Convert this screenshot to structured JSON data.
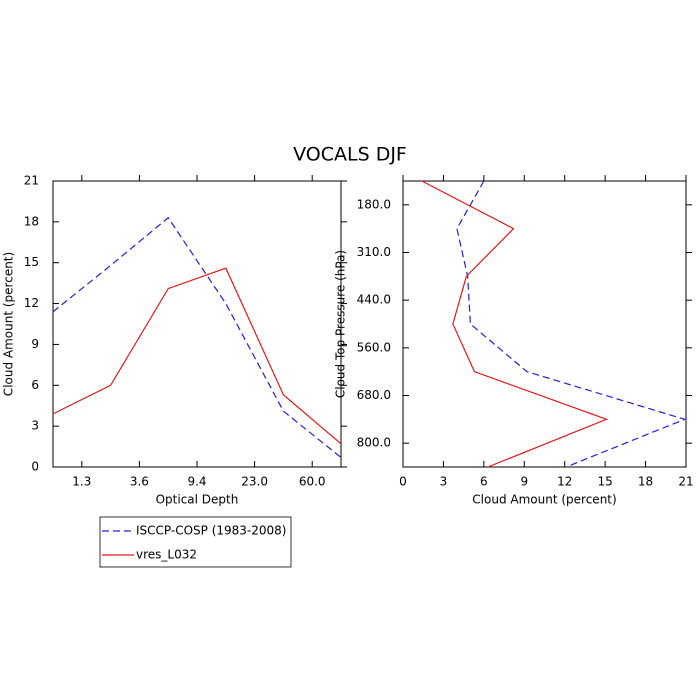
{
  "chart_data": [
    {
      "type": "line",
      "title": "VOCALS DJF",
      "xlabel": "Optical Depth",
      "ylabel": "Cloud Amount (percent)",
      "x": [
        0,
        1,
        2,
        3,
        4,
        5
      ],
      "xlim": [
        0,
        5
      ],
      "xticks": [
        {
          "value": 0.5,
          "label": "1.3"
        },
        {
          "value": 1.5,
          "label": "3.6"
        },
        {
          "value": 2.5,
          "label": "9.4"
        },
        {
          "value": 3.5,
          "label": "23.0"
        },
        {
          "value": 4.5,
          "label": "60.0"
        }
      ],
      "ylim": [
        0,
        21
      ],
      "yticks": [
        0,
        3,
        6,
        9,
        12,
        15,
        18,
        21
      ],
      "legend": "below",
      "series": [
        {
          "name": "ISCCP-COSP (1983-2008)",
          "color": "#2020dd",
          "dashed": true,
          "values": [
            11.4,
            14.8,
            18.3,
            12.0,
            4.1,
            0.7
          ]
        },
        {
          "name": "vres_L032",
          "color": "#dd1c1c",
          "dashed": false,
          "values": [
            3.9,
            6.0,
            13.1,
            14.6,
            5.3,
            1.7
          ]
        }
      ]
    },
    {
      "type": "line",
      "orientation": "horizontal",
      "xlabel": "Cloud Amount (percent)",
      "ylabel": "Cloud Top Pressure (hPa)",
      "y": [
        0,
        1,
        2,
        3,
        4,
        5,
        6
      ],
      "ylim": [
        0,
        6
      ],
      "y_inverted": true,
      "yticks": [
        {
          "value": 0.5,
          "label": "180.0"
        },
        {
          "value": 1.5,
          "label": "310.0"
        },
        {
          "value": 2.5,
          "label": "440.0"
        },
        {
          "value": 3.5,
          "label": "560.0"
        },
        {
          "value": 4.5,
          "label": "680.0"
        },
        {
          "value": 5.5,
          "label": "800.0"
        }
      ],
      "xlim": [
        0,
        21
      ],
      "xticks": [
        0,
        3,
        6,
        9,
        12,
        15,
        18,
        21
      ],
      "series": [
        {
          "color": "#2020dd",
          "dashed": true,
          "values": [
            6.0,
            4.0,
            4.8,
            5.0,
            9.2,
            20.9,
            12.1
          ]
        },
        {
          "color": "#dd1c1c",
          "dashed": false,
          "values": [
            1.4,
            8.2,
            4.7,
            3.7,
            5.3,
            15.1,
            6.3
          ]
        }
      ]
    }
  ]
}
